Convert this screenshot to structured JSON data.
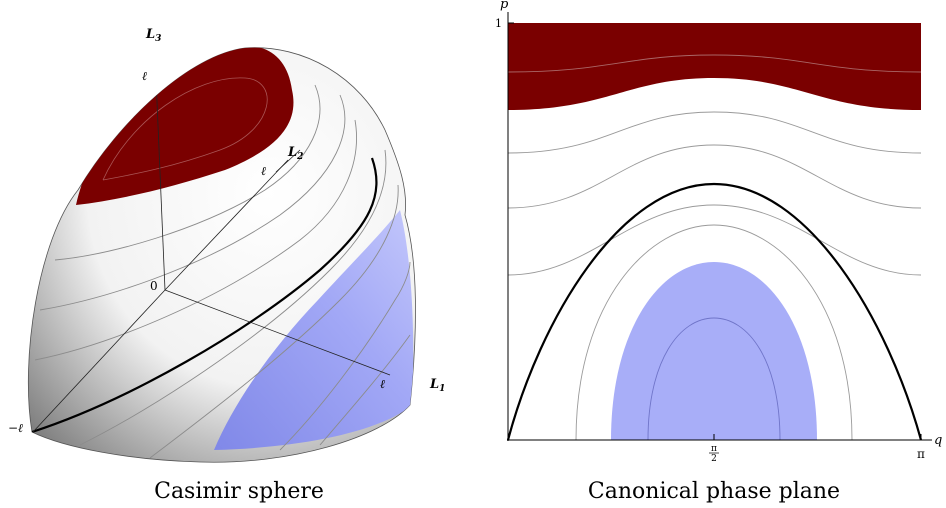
{
  "left_panel": {
    "caption": "Casimir sphere",
    "axes": {
      "l3": "L",
      "l3_sub": "3",
      "l2": "L",
      "l2_sub": "2",
      "l1": "L",
      "l1_sub": "1"
    },
    "ticks": {
      "top": "ℓ",
      "mid": "ℓ",
      "right": "ℓ",
      "origin": "0",
      "neg": "−ℓ"
    }
  },
  "right_panel": {
    "caption": "Canonical phase plane",
    "p_label": "p",
    "q_label": "q",
    "p_max": "1",
    "q_mid_num": "π",
    "q_mid_den": "2",
    "q_max": "π"
  },
  "colors": {
    "dark_red": "#7a0000",
    "light_blue": "#a8aef8",
    "contour_gray": "#999999",
    "separatrix": "#000000"
  }
}
